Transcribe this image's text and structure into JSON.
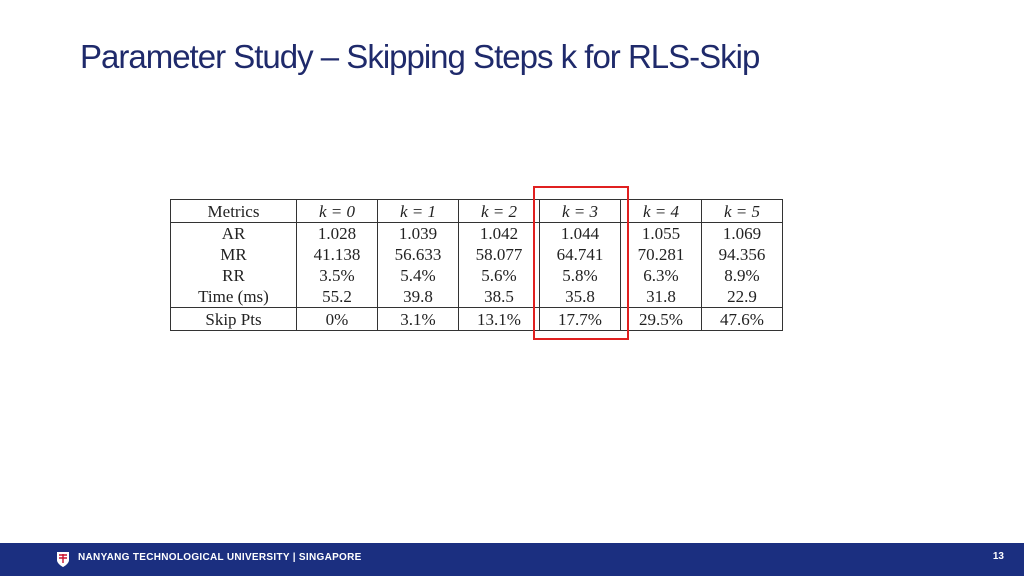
{
  "slide": {
    "title": "Parameter Study – Skipping Steps k for RLS-Skip"
  },
  "table": {
    "headers": [
      "Metrics",
      "k = 0",
      "k = 1",
      "k = 2",
      "k = 3",
      "k = 4",
      "k = 5"
    ],
    "rows": [
      [
        "AR",
        "1.028",
        "1.039",
        "1.042",
        "1.044",
        "1.055",
        "1.069"
      ],
      [
        "MR",
        "41.138",
        "56.633",
        "58.077",
        "64.741",
        "70.281",
        "94.356"
      ],
      [
        "RR",
        "3.5%",
        "5.4%",
        "5.6%",
        "5.8%",
        "6.3%",
        "8.9%"
      ],
      [
        "Time (ms)",
        "55.2",
        "39.8",
        "38.5",
        "35.8",
        "31.8",
        "22.9"
      ],
      [
        "Skip Pts",
        "0%",
        "3.1%",
        "13.1%",
        "17.7%",
        "29.5%",
        "47.6%"
      ]
    ],
    "highlighted_column_header": "k = 3"
  },
  "footer": {
    "university": "NANYANG TECHNOLOGICAL UNIVERSITY | SINGAPORE",
    "page_number": "13",
    "background_color": "#1b2f80",
    "logo_icon": "ntu-crest-icon"
  },
  "colors": {
    "title": "#1f2a6b",
    "highlight_box": "#e02020"
  }
}
